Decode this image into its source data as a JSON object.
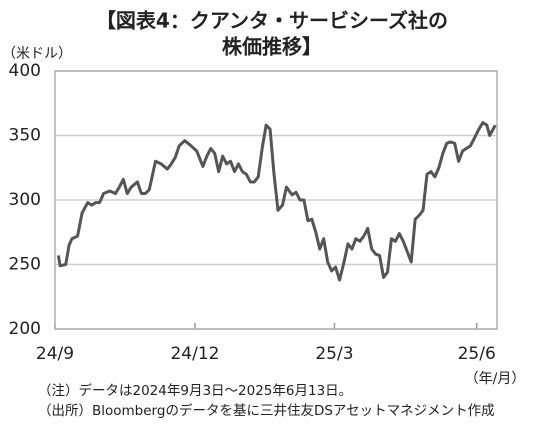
{
  "chart_data": {
    "type": "line",
    "title": [
      "【図表4：クアンタ・サービシーズ社の",
      "株価推移】"
    ],
    "y_axis_label": "（米ドル）",
    "x_axis_label": "（年/月）",
    "notes": [
      "（注）データは2024年9月3日～2025年6月13日。",
      "（出所）Bloombergのデータを基に三井住友DSアセットマネジメント作成"
    ],
    "ylim": [
      200,
      400
    ],
    "yticks": [
      200,
      250,
      300,
      350,
      400
    ],
    "xlim": [
      2024.667,
      2025.45
    ],
    "xticks": [
      {
        "value": 2024.667,
        "label": "24/9"
      },
      {
        "value": 2024.915,
        "label": "24/12"
      },
      {
        "value": 2025.162,
        "label": "25/3"
      },
      {
        "value": 2025.414,
        "label": "25/6"
      }
    ],
    "grid": true,
    "series": [
      {
        "name": "クアンタ・サービシーズ",
        "color": "#555555",
        "x": [
          2024.673,
          2024.676,
          2024.686,
          2024.692,
          2024.697,
          2024.707,
          2024.715,
          2024.725,
          2024.732,
          2024.739,
          2024.746,
          2024.753,
          2024.764,
          2024.774,
          2024.781,
          2024.788,
          2024.795,
          2024.802,
          2024.813,
          2024.82,
          2024.827,
          2024.834,
          2024.845,
          2024.855,
          2024.866,
          2024.873,
          2024.88,
          2024.887,
          2024.897,
          2024.908,
          2024.918,
          2024.929,
          2024.936,
          2024.943,
          2024.95,
          2024.957,
          2024.964,
          2024.971,
          2024.978,
          2024.985,
          2024.992,
          2024.999,
          2025.006,
          2025.013,
          2025.02,
          2025.027,
          2025.034,
          2025.041,
          2025.048,
          2025.055,
          2025.062,
          2025.07,
          2025.077,
          2025.087,
          2025.094,
          2025.101,
          2025.108,
          2025.115,
          2025.122,
          2025.129,
          2025.136,
          2025.143,
          2025.15,
          2025.157,
          2025.164,
          2025.171,
          2025.178,
          2025.186,
          2025.193,
          2025.2,
          2025.207,
          2025.214,
          2025.221,
          2025.228,
          2025.235,
          2025.242,
          2025.249,
          2025.256,
          2025.263,
          2025.27,
          2025.277,
          2025.284,
          2025.291,
          2025.298,
          2025.305,
          2025.312,
          2025.319,
          2025.326,
          2025.333,
          2025.34,
          2025.347,
          2025.354,
          2025.361,
          2025.368,
          2025.375,
          2025.382,
          2025.389,
          2025.396,
          2025.403,
          2025.41,
          2025.418,
          2025.425,
          2025.432,
          2025.437,
          2025.447
        ],
        "values": [
          257,
          249,
          250,
          265,
          270,
          272,
          290,
          298,
          296,
          298,
          298,
          305,
          307,
          305,
          310,
          316,
          305,
          310,
          314,
          305,
          305,
          308,
          330,
          328,
          324,
          328,
          333,
          342,
          346,
          342,
          338,
          326,
          334,
          340,
          336,
          322,
          334,
          328,
          330,
          322,
          328,
          322,
          320,
          314,
          314,
          318,
          340,
          358,
          355,
          320,
          292,
          296,
          310,
          304,
          306,
          300,
          300,
          284,
          285,
          275,
          262,
          270,
          252,
          245,
          248,
          238,
          250,
          266,
          262,
          270,
          268,
          272,
          278,
          262,
          258,
          257,
          240,
          244,
          270,
          268,
          274,
          268,
          260,
          252,
          285,
          288,
          292,
          320,
          322,
          318,
          325,
          336,
          344,
          345,
          344,
          330,
          338,
          340,
          342,
          348,
          355,
          360,
          358,
          350,
          358
        ]
      }
    ]
  }
}
